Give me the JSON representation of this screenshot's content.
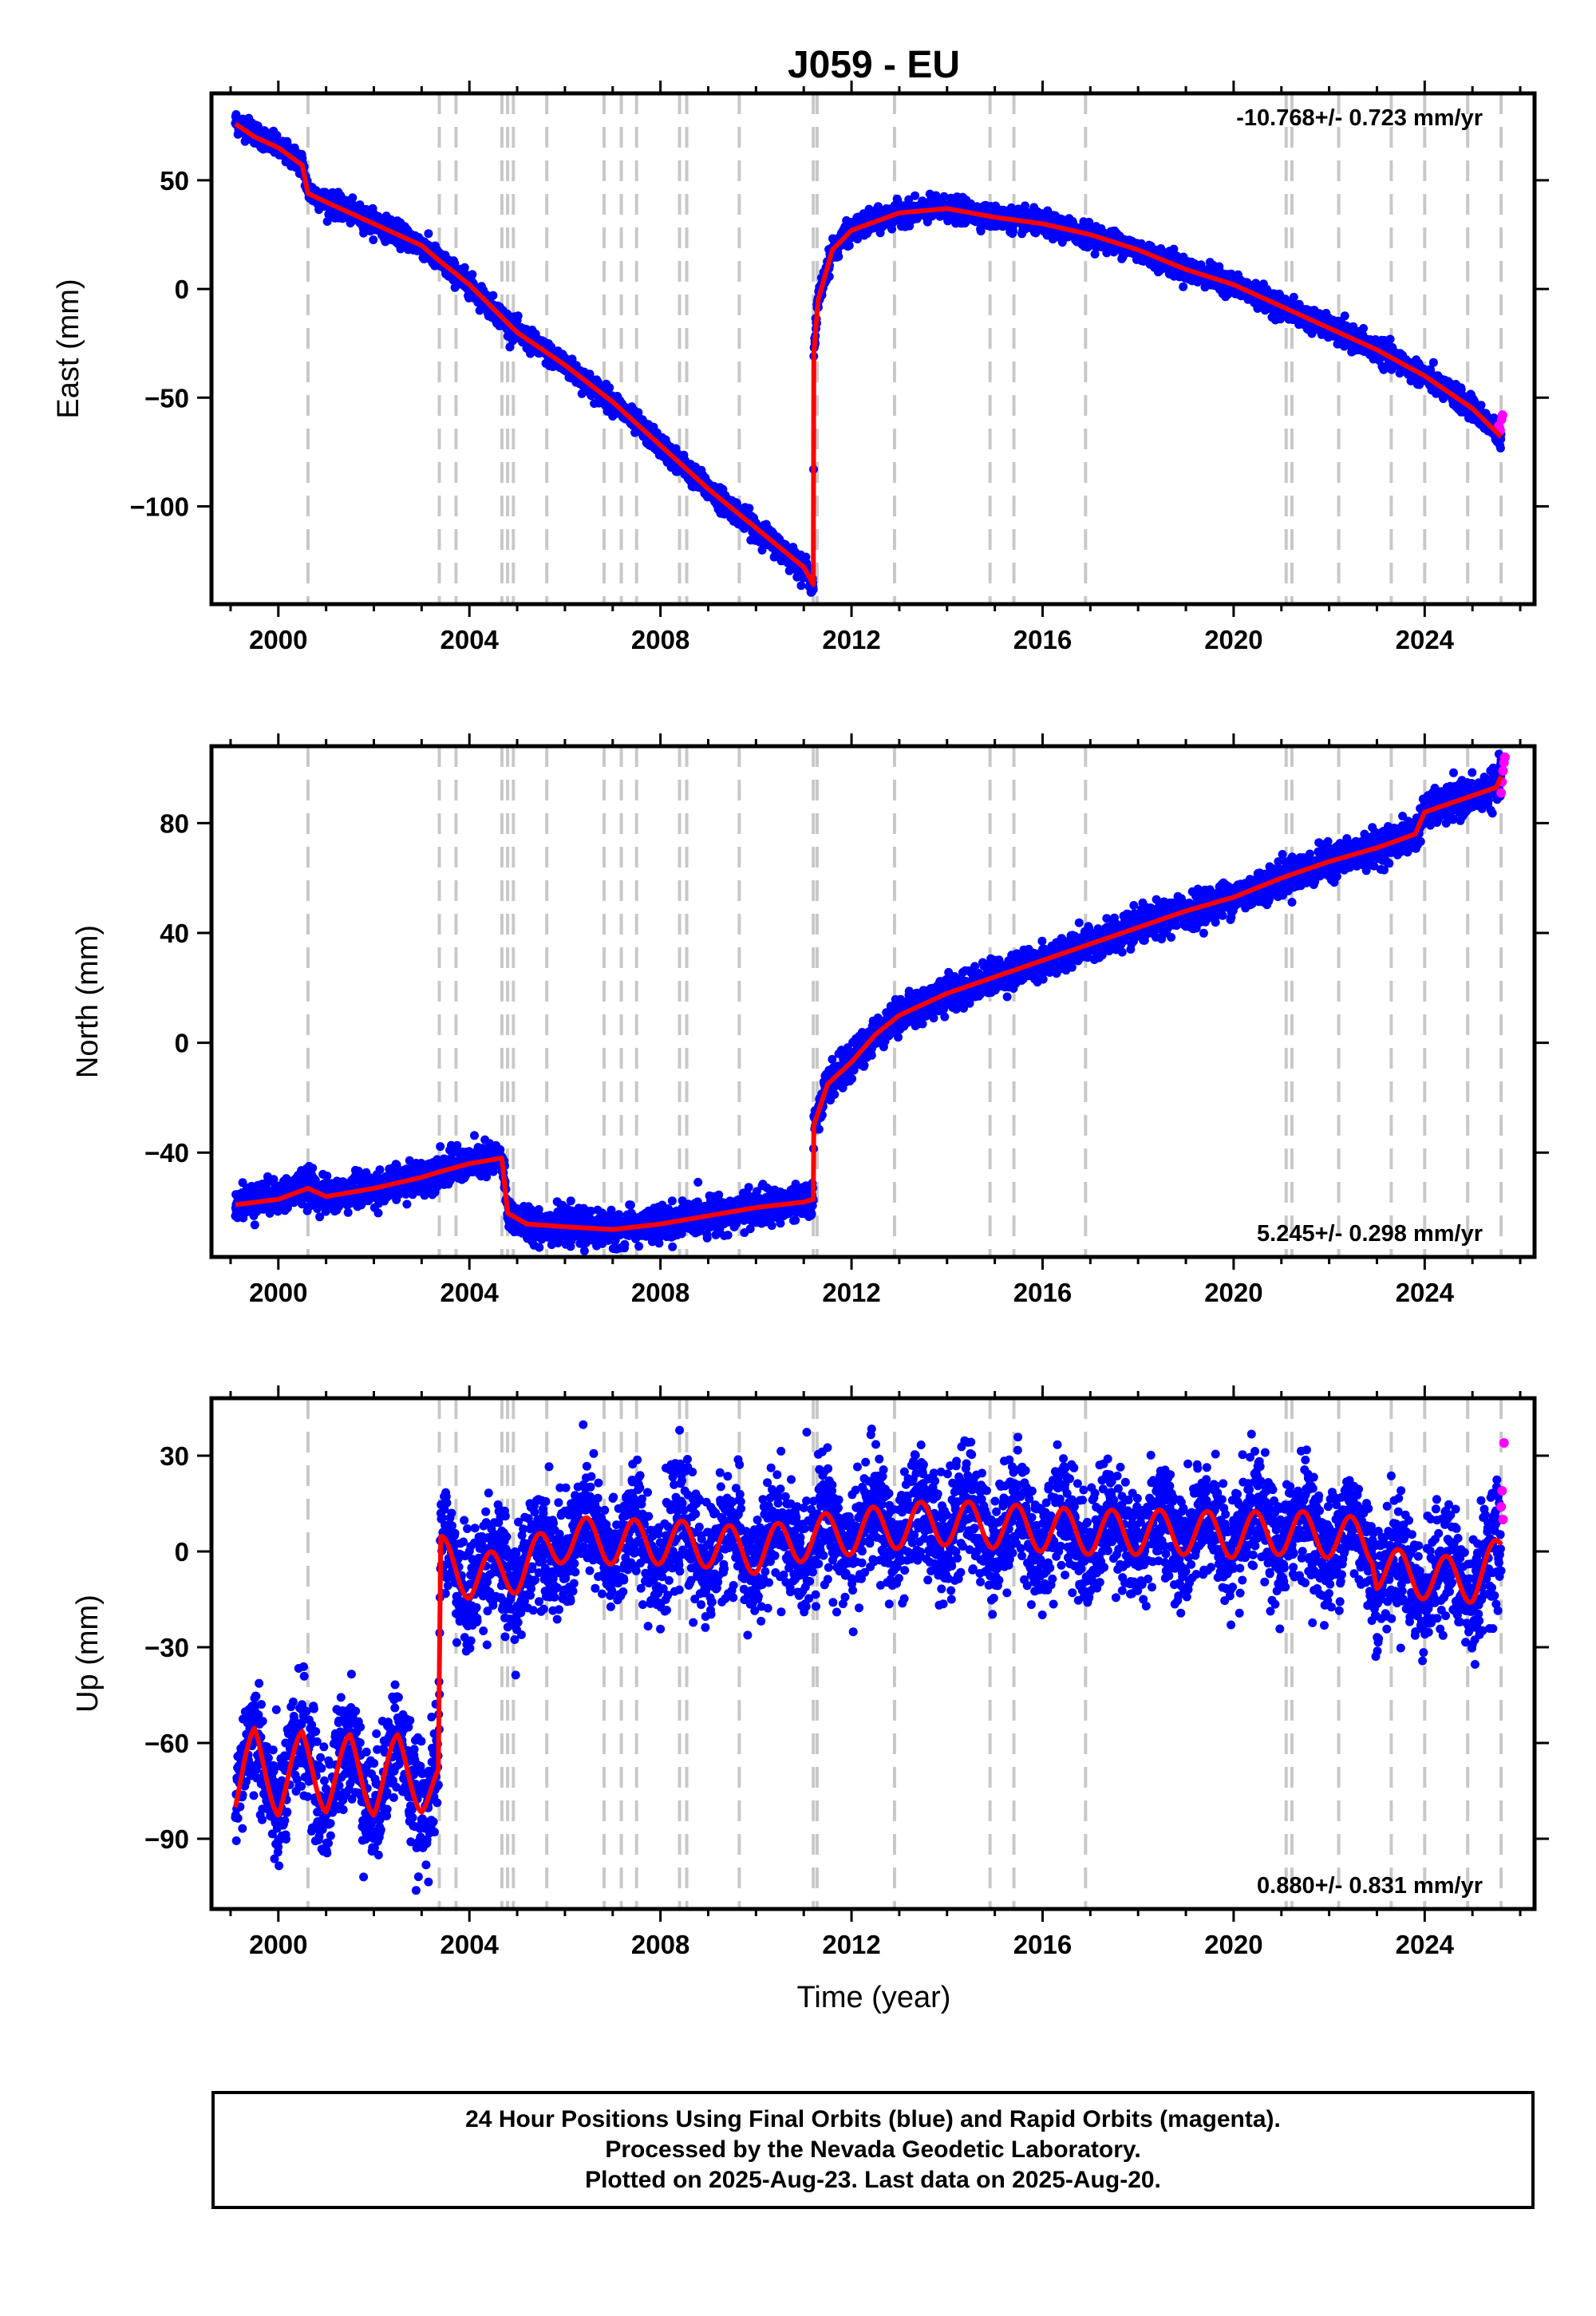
{
  "title": "J059 - EU",
  "xlabel": "Time (year)",
  "colors": {
    "final_orbits": "#0000ff",
    "rapid_orbits": "#ff00ff",
    "model": "#ff0000",
    "events": "#c8c8c8",
    "axes": "#000000"
  },
  "event_lines": [
    2000.62,
    2003.37,
    2003.72,
    2004.68,
    2004.8,
    2004.92,
    2005.62,
    2006.82,
    2007.18,
    2007.5,
    2008.4,
    2008.55,
    2009.65,
    2011.2,
    2011.28,
    2012.9,
    2014.9,
    2015.4,
    2016.9,
    2021.1,
    2021.22,
    2022.2,
    2023.3,
    2024.0,
    2024.9,
    2025.6
  ],
  "chart_data": [
    {
      "type": "scatter",
      "name": "east",
      "ylabel": "East (mm)",
      "rate": "-10.768+/- 0.723 mm/yr",
      "rate_position": "top-right",
      "xlim": [
        1998.6,
        2026.3
      ],
      "ylim": [
        -145,
        90
      ],
      "xticks": [
        2000,
        2004,
        2008,
        2012,
        2016,
        2020,
        2024
      ],
      "xtick_labels": [
        "2000",
        "2004",
        "2008",
        "2012",
        "2016",
        "2020",
        "2024"
      ],
      "yticks": [
        50,
        0,
        -50,
        -100
      ],
      "ytick_labels": [
        "50",
        "0",
        "−50",
        "−100"
      ],
      "series": [
        {
          "name": "final",
          "scatter": 2.5,
          "x": [
            1999.1,
            1999.5,
            2000.0,
            2000.5,
            2000.62,
            2001.0,
            2002.0,
            2003.0,
            2003.37,
            2004.0,
            2004.68,
            2005.0,
            2006.0,
            2007.0,
            2008.0,
            2009.0,
            2010.0,
            2011.0,
            2011.2,
            2011.21,
            2011.3,
            2011.6,
            2012.0,
            2013.0,
            2014.0,
            2015.0,
            2016.0,
            2017.0,
            2018.0,
            2019.0,
            2020.0,
            2021.0,
            2022.0,
            2023.0,
            2024.0,
            2025.0,
            2025.6
          ],
          "y": [
            77,
            72,
            65,
            58,
            45,
            40,
            31,
            20,
            13,
            2,
            -13,
            -20,
            -35,
            -52,
            -72,
            -92,
            -110,
            -128,
            -136,
            -30,
            -5,
            18,
            27,
            35,
            37,
            33,
            30,
            25,
            18,
            9,
            2,
            -8,
            -18,
            -28,
            -40,
            -55,
            -68
          ]
        },
        {
          "name": "rapid",
          "scatter": 3,
          "x": [
            2025.55,
            2025.58,
            2025.61,
            2025.63
          ],
          "y": [
            -63,
            -65,
            -60,
            -58
          ]
        }
      ],
      "model": {
        "x": [
          1999.1,
          1999.5,
          2000.0,
          2000.5,
          2000.62,
          2001.0,
          2002.0,
          2003.0,
          2003.37,
          2004.0,
          2004.68,
          2005.0,
          2006.0,
          2007.0,
          2008.0,
          2009.0,
          2010.0,
          2011.0,
          2011.2,
          2011.21,
          2011.3,
          2011.6,
          2012.0,
          2013.0,
          2014.0,
          2015.0,
          2016.0,
          2017.0,
          2018.0,
          2019.0,
          2020.0,
          2021.0,
          2022.0,
          2023.0,
          2024.0,
          2025.0,
          2025.6
        ],
        "y": [
          76,
          70,
          65,
          57,
          44,
          40,
          30,
          20,
          13,
          2,
          -13,
          -20,
          -35,
          -52,
          -72,
          -92,
          -110,
          -128,
          -136,
          -30,
          -5,
          18,
          27,
          35,
          37,
          33,
          30,
          25,
          18,
          9,
          2,
          -8,
          -18,
          -28,
          -40,
          -55,
          -68
        ]
      }
    },
    {
      "type": "scatter",
      "name": "north",
      "ylabel": "North (mm)",
      "rate": "5.245+/- 0.298 mm/yr",
      "rate_position": "bottom-right",
      "xlim": [
        1998.6,
        2026.3
      ],
      "ylim": [
        -78,
        108
      ],
      "xticks": [
        2000,
        2004,
        2008,
        2012,
        2016,
        2020,
        2024
      ],
      "xtick_labels": [
        "2000",
        "2004",
        "2008",
        "2012",
        "2016",
        "2020",
        "2024"
      ],
      "yticks": [
        80,
        40,
        0,
        -40
      ],
      "ytick_labels": [
        "80",
        "40",
        "0",
        "−40"
      ],
      "series": [
        {
          "name": "final",
          "scatter": 3,
          "x": [
            1999.1,
            2000.0,
            2000.62,
            2001.0,
            2002.0,
            2003.0,
            2003.37,
            2004.0,
            2004.68,
            2004.8,
            2005.2,
            2006.0,
            2007.0,
            2008.0,
            2009.0,
            2010.0,
            2011.0,
            2011.2,
            2011.21,
            2011.5,
            2012.0,
            2012.5,
            2013.0,
            2014.0,
            2015.0,
            2016.0,
            2017.0,
            2018.0,
            2019.0,
            2020.0,
            2021.0,
            2022.0,
            2023.0,
            2023.8,
            2024.0,
            2025.0,
            2025.5,
            2025.6
          ],
          "y": [
            -58,
            -56,
            -52,
            -56,
            -53,
            -49,
            -46,
            -44,
            -42,
            -62,
            -66,
            -67,
            -68,
            -66,
            -63,
            -60,
            -58,
            -57,
            -30,
            -15,
            -7,
            3,
            10,
            18,
            24,
            30,
            36,
            42,
            48,
            53,
            60,
            66,
            71,
            76,
            84,
            90,
            93,
            97
          ]
        },
        {
          "name": "rapid",
          "scatter": 3,
          "x": [
            2025.6,
            2025.62,
            2025.64,
            2025.66,
            2025.68
          ],
          "y": [
            91,
            95,
            99,
            102,
            104
          ]
        }
      ],
      "model": {
        "x": [
          1999.1,
          2000.0,
          2000.62,
          2001.0,
          2002.0,
          2003.0,
          2003.37,
          2004.0,
          2004.68,
          2004.8,
          2005.2,
          2006.0,
          2007.0,
          2008.0,
          2009.0,
          2010.0,
          2011.0,
          2011.2,
          2011.21,
          2011.5,
          2012.0,
          2012.5,
          2013.0,
          2014.0,
          2015.0,
          2016.0,
          2017.0,
          2018.0,
          2019.0,
          2020.0,
          2021.0,
          2022.0,
          2023.0,
          2023.8,
          2024.0,
          2025.0,
          2025.5,
          2025.6
        ],
        "y": [
          -59,
          -57,
          -53,
          -56,
          -53,
          -49,
          -47,
          -44,
          -42,
          -62,
          -66,
          -67,
          -68,
          -66,
          -63,
          -60,
          -58,
          -57,
          -30,
          -15,
          -7,
          3,
          10,
          18,
          24,
          30,
          36,
          42,
          48,
          53,
          60,
          66,
          71,
          76,
          84,
          90,
          93,
          97
        ]
      }
    },
    {
      "type": "scatter",
      "name": "up",
      "ylabel": "Up (mm)",
      "rate": "0.880+/- 0.831 mm/yr",
      "rate_position": "bottom-right",
      "xlim": [
        1998.6,
        2026.3
      ],
      "ylim": [
        -112,
        48
      ],
      "xticks": [
        2000,
        2004,
        2008,
        2012,
        2016,
        2020,
        2024
      ],
      "xtick_labels": [
        "2000",
        "2004",
        "2008",
        "2012",
        "2016",
        "2020",
        "2024"
      ],
      "yticks": [
        30,
        0,
        -30,
        -60,
        -90
      ],
      "ytick_labels": [
        "30",
        "0",
        "−30",
        "−60",
        "−90"
      ],
      "series": [
        {
          "name": "final",
          "scatter": 9,
          "x": [
            1999.1,
            1999.5,
            2000.0,
            2000.5,
            2001.0,
            2001.5,
            2002.0,
            2002.5,
            2003.0,
            2003.35,
            2003.4,
            2004.0,
            2005.0,
            2006.0,
            2007.0,
            2008.0,
            2009.0,
            2010.0,
            2011.0,
            2012.0,
            2013.0,
            2014.0,
            2015.0,
            2016.0,
            2017.0,
            2018.0,
            2019.0,
            2020.0,
            2021.0,
            2022.0,
            2022.9,
            2023.0,
            2024.0,
            2025.0,
            2025.6
          ],
          "y": [
            -76,
            -62,
            -76,
            -63,
            -75,
            -64,
            -76,
            -64,
            -75,
            -74,
            -2,
            -8,
            -6,
            4,
            3,
            3,
            2,
            0,
            4,
            6,
            8,
            9,
            8,
            7,
            6,
            6,
            6,
            5,
            6,
            5,
            3,
            -5,
            -8,
            -9,
            -2
          ]
        },
        {
          "name": "rapid",
          "scatter": 6,
          "x": [
            2025.6,
            2025.62,
            2025.64,
            2025.66
          ],
          "y": [
            14,
            19,
            10,
            34
          ]
        }
      ],
      "model": {
        "x": [
          1999.1,
          1999.5,
          2000.0,
          2000.5,
          2001.0,
          2001.5,
          2002.0,
          2002.5,
          2003.0,
          2003.35,
          2003.4,
          2004.0,
          2005.0,
          2006.0,
          2007.0,
          2008.0,
          2009.0,
          2010.0,
          2011.0,
          2012.0,
          2013.0,
          2014.0,
          2015.0,
          2016.0,
          2017.0,
          2018.0,
          2019.0,
          2020.0,
          2021.0,
          2022.0,
          2022.9,
          2023.0,
          2024.0,
          2025.0,
          2025.6
        ],
        "y": [
          -76,
          -62,
          -76,
          -63,
          -75,
          -64,
          -76,
          -64,
          -75,
          -74,
          -2,
          -8,
          -6,
          4,
          3,
          3,
          2,
          0,
          4,
          6,
          8,
          9,
          8,
          7,
          6,
          6,
          6,
          5,
          6,
          5,
          3,
          -5,
          -8,
          -9,
          -2
        ],
        "seasonal_amplitude": 7
      }
    }
  ],
  "footer": {
    "line1": "24 Hour Positions Using Final Orbits (blue) and Rapid Orbits (magenta).",
    "line2": "Processed by the Nevada Geodetic Laboratory.",
    "line3": "Plotted on 2025-Aug-23. Last data on 2025-Aug-20."
  }
}
